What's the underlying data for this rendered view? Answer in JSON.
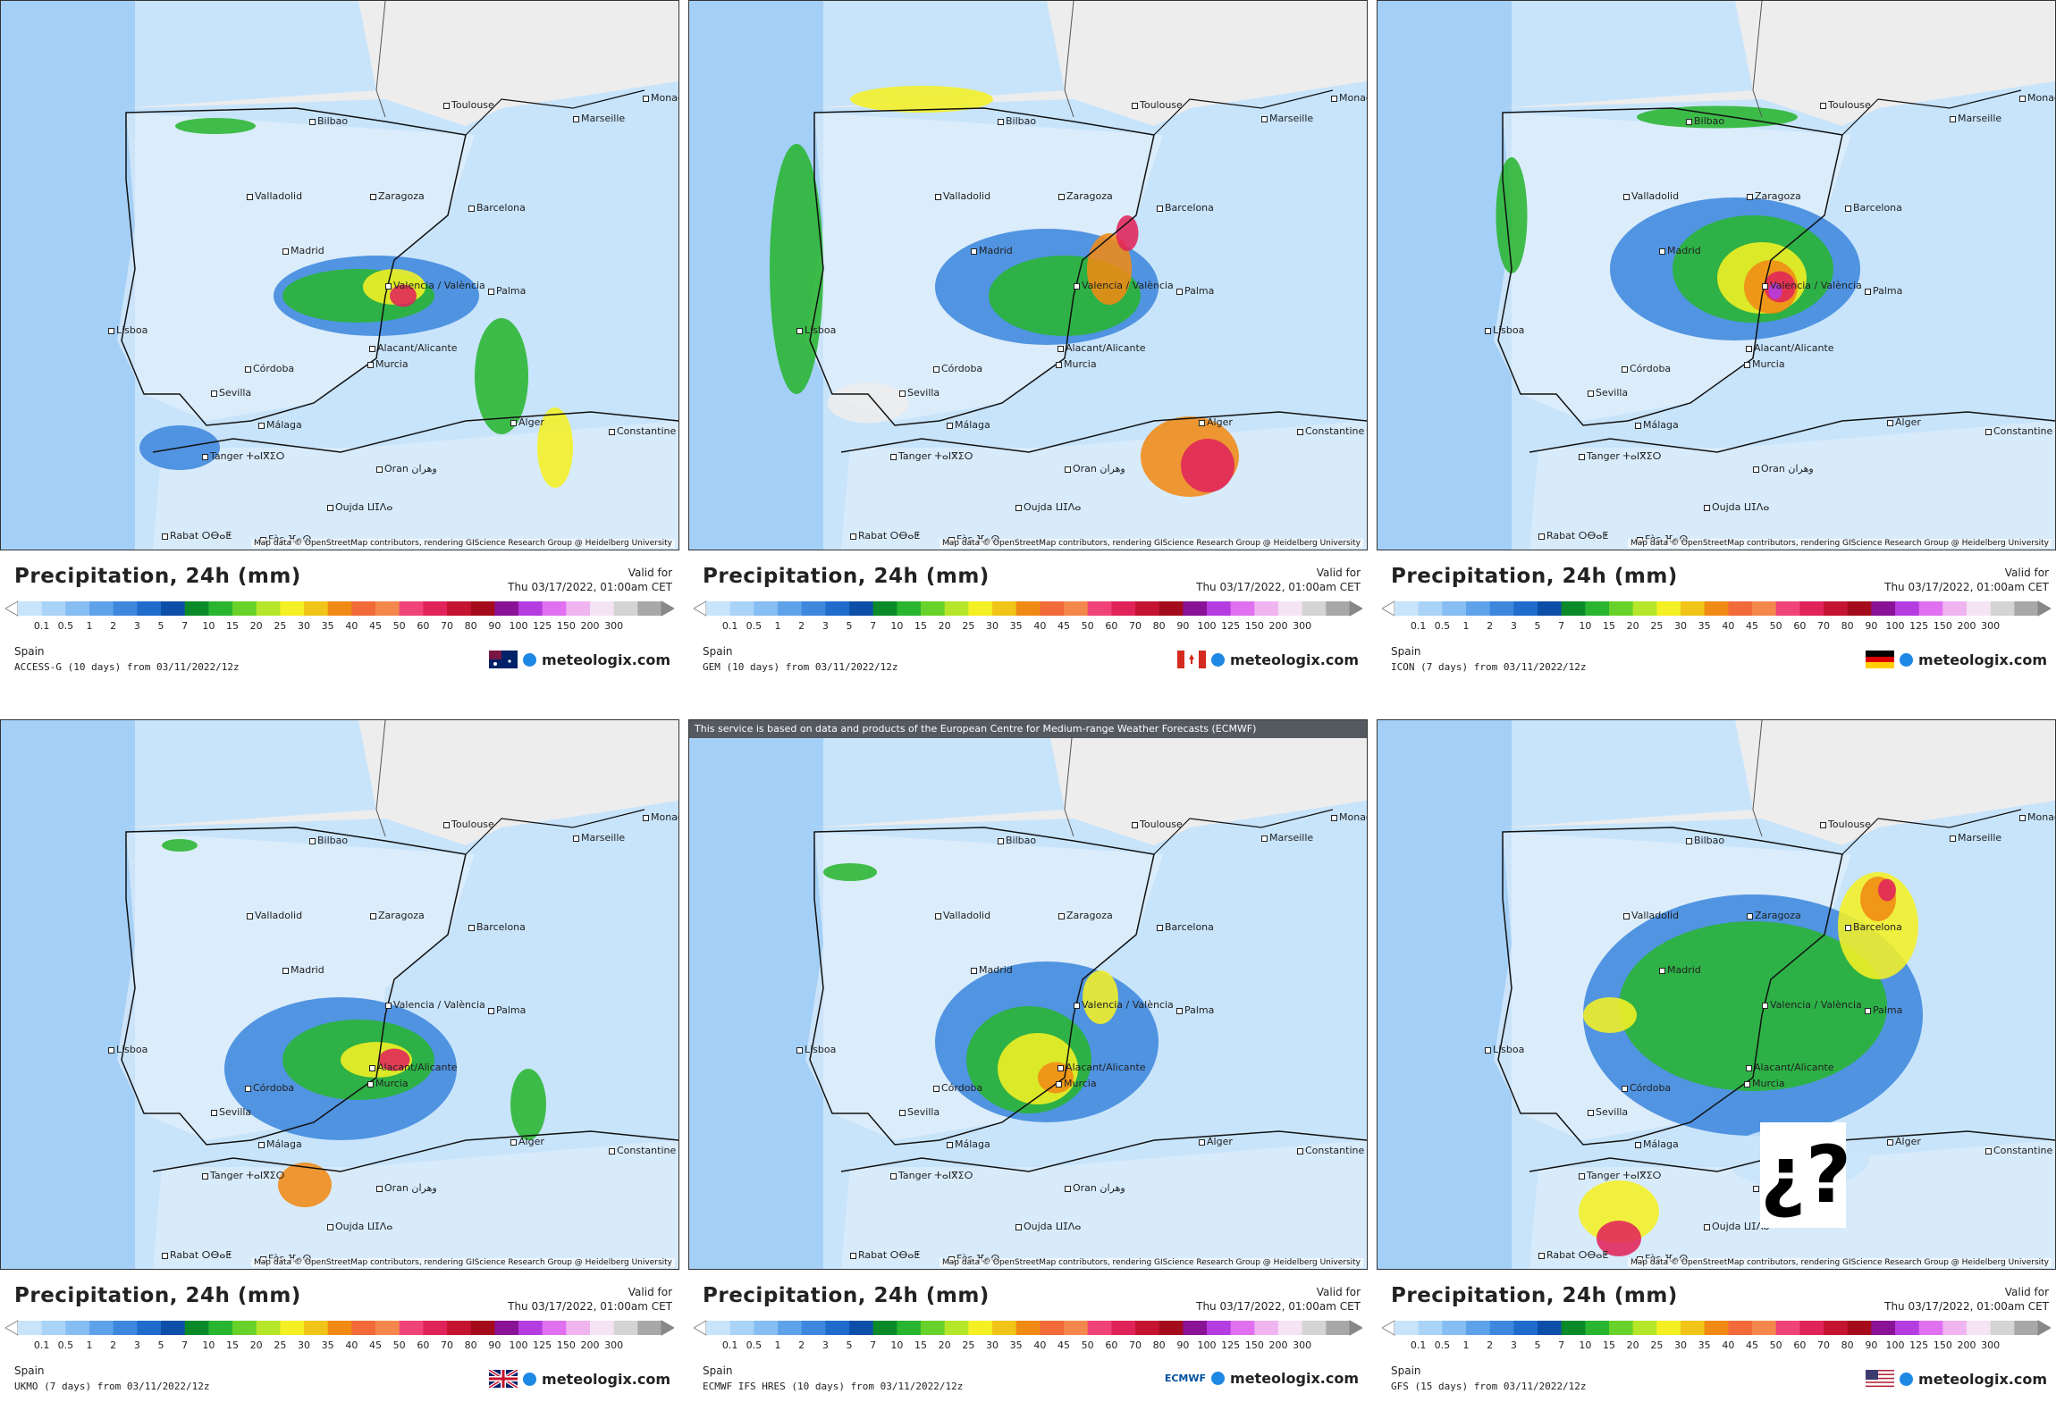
{
  "common": {
    "title": "Precipitation, 24h (mm)",
    "valid_label": "Valid for",
    "valid_date": "Thu 03/17/2022, 01:00am CET",
    "region": "Spain",
    "brand": "meteologix.com",
    "attribution": "Map data © OpenStreetMap contributors, rendering GIScience Research Group @ Heidelberg University",
    "ecmwf_banner": "This service is based on data and products of the European Centre for Medium-range Weather Forecasts (ECMWF)",
    "scale_ticks": [
      "0.1",
      "0.5",
      "1",
      "2",
      "3",
      "5",
      "7",
      "10",
      "15",
      "20",
      "25",
      "30",
      "35",
      "40",
      "45",
      "50",
      "60",
      "70",
      "80",
      "90",
      "100",
      "125",
      "150",
      "200",
      "300"
    ],
    "scale_colors": [
      "#c8e4fb",
      "#a9d3f7",
      "#86bdf2",
      "#5ea3ea",
      "#3d87dd",
      "#1f6ccd",
      "#0d4fa8",
      "#0b8a2a",
      "#29b530",
      "#68d22a",
      "#b5e62a",
      "#f4f024",
      "#f0c418",
      "#f08a14",
      "#f26a3a",
      "#f4874c",
      "#f04478",
      "#e0245a",
      "#c41432",
      "#a40c1c",
      "#8a1296",
      "#b43ce0",
      "#e070f0",
      "#f0b4f0",
      "#f4e4f4",
      "#d4d4d4",
      "#a8a8a8"
    ]
  },
  "cities": [
    "Bilbao",
    "Toulouse",
    "Marseille",
    "Monaco",
    "Valladolid",
    "Zaragoza",
    "Barcelona",
    "Madrid",
    "Valencia / València",
    "Palma",
    "Lisboa",
    "Córdoba",
    "Alacant/Alicante",
    "Murcia",
    "Sevilla",
    "Málaga",
    "Alger",
    "Constantine",
    "Tanger ⵜⴰⵏⴳⵉⵔ",
    "Oran وهران",
    "Oujda ⵡⵊⴷⴰ",
    "Rabat ⵔⴱⴰⵟ",
    "Fès ⴼⴰⵙ"
  ],
  "panels": [
    {
      "model": "ACCESS-G (10 days) from 03/11/2022/12z",
      "flag": "australia-flag",
      "ecmwf_logo": false,
      "question": false
    },
    {
      "model": "GEM (10 days) from 03/11/2022/12z",
      "flag": "canada-flag",
      "ecmwf_logo": false,
      "question": false
    },
    {
      "model": "ICON (7 days) from 03/11/2022/12z",
      "flag": "germany-flag",
      "ecmwf_logo": false,
      "question": false
    },
    {
      "model": "UKMO (7 days) from 03/11/2022/12z",
      "flag": "uk-flag",
      "ecmwf_logo": false,
      "question": false
    },
    {
      "model": "ECMWF IFS HRES (10 days) from 03/11/2022/12z",
      "flag": "ecmwf-logo",
      "ecmwf_logo": true,
      "ecmwf_logo_text": "ECMWF",
      "question": false
    },
    {
      "model": "GFS (15 days) from 03/11/2022/12z",
      "flag": "usa-flag",
      "ecmwf_logo": false,
      "question": true,
      "question_text": "¿?"
    }
  ],
  "colors": {
    "land": "#ededed",
    "sea_low": "#c8e4fb",
    "mid_blue": "#3d87dd",
    "green": "#29b530",
    "yellow": "#f4f024",
    "orange": "#f08a14",
    "red": "#e0245a",
    "purple": "#b43ce0"
  }
}
